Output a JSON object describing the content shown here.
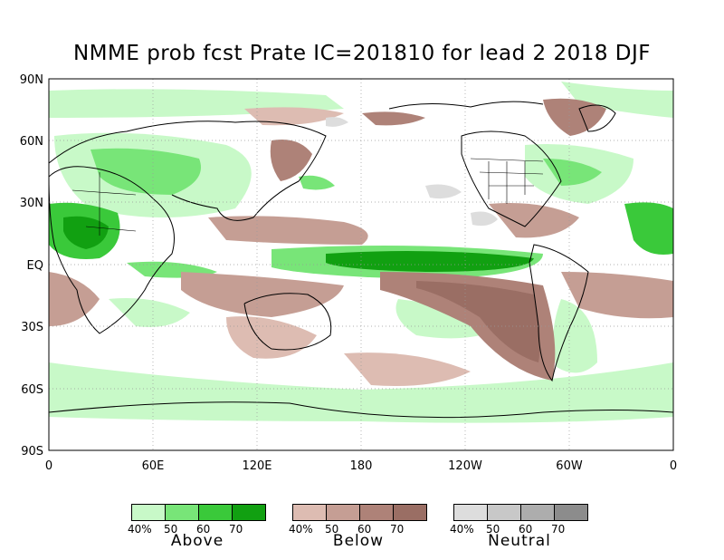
{
  "title": "NMME prob fcst Prate IC=201810 for lead 2 2018 DJF",
  "map": {
    "lat_labels": [
      "90N",
      "60N",
      "30N",
      "EQ",
      "30S",
      "60S",
      "90S"
    ],
    "lon_labels": [
      "0",
      "60E",
      "120E",
      "180",
      "120W",
      "60W",
      "0"
    ]
  },
  "legend": [
    {
      "category": "Above",
      "ticks": [
        "40%",
        "50",
        "60",
        "70"
      ],
      "colors": [
        "#c8f9c8",
        "#78e578",
        "#3ac93a",
        "#11a011"
      ]
    },
    {
      "category": "Below",
      "ticks": [
        "40%",
        "50",
        "60",
        "70"
      ],
      "colors": [
        "#ddbcb2",
        "#c59e94",
        "#ae8278",
        "#9a6e64"
      ]
    },
    {
      "category": "Neutral",
      "ticks": [
        "40%",
        "50",
        "60",
        "70"
      ],
      "colors": [
        "#dddddd",
        "#c8c8c8",
        "#adadad",
        "#8c8c8c"
      ]
    }
  ]
}
